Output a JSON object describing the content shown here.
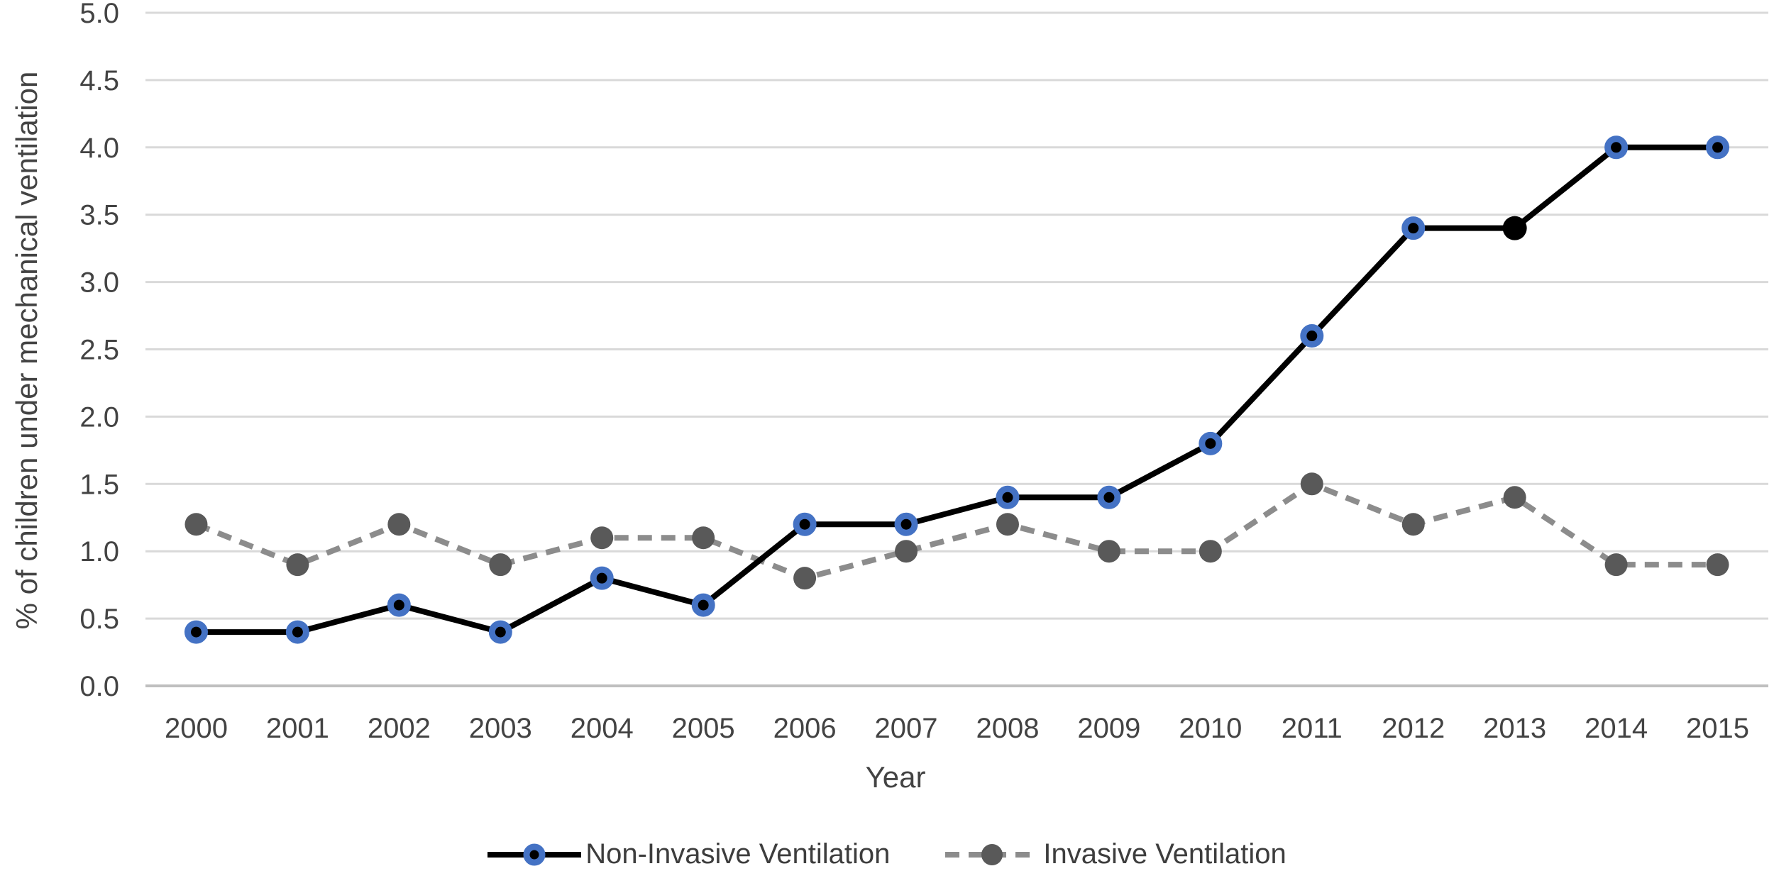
{
  "figure": {
    "background": "#ffffff"
  },
  "chart_data": {
    "type": "line",
    "title": "",
    "xlabel": "Year",
    "ylabel": "% of children under mechanical ventilation",
    "categories": [
      "2000",
      "2001",
      "2002",
      "2003",
      "2004",
      "2005",
      "2006",
      "2007",
      "2008",
      "2009",
      "2010",
      "2011",
      "2012",
      "2013",
      "2014",
      "2015"
    ],
    "y_ticks": [
      "0.0",
      "0.5",
      "1.0",
      "1.5",
      "2.0",
      "2.5",
      "3.0",
      "3.5",
      "4.0",
      "4.5",
      "5.0"
    ],
    "ylim": [
      0,
      5
    ],
    "grid": "horizontal",
    "legend_position": "bottom",
    "series": [
      {
        "name": "Non-Invasive Ventilation",
        "values": [
          0.4,
          0.4,
          0.6,
          0.4,
          0.8,
          0.6,
          1.2,
          1.2,
          1.4,
          1.4,
          1.8,
          2.6,
          3.4,
          3.4,
          4.0,
          4.0
        ],
        "line_style": "solid",
        "line_color": "#000000",
        "marker": "ring",
        "marker_ring_color": "#4472C4",
        "marker_core_color": "#000000",
        "marker_overrides": [
          {
            "index": 13,
            "marker": "solid",
            "color": "#000000"
          }
        ]
      },
      {
        "name": "Invasive Ventilation",
        "values": [
          1.2,
          0.9,
          1.2,
          0.9,
          1.1,
          1.1,
          0.8,
          1.0,
          1.2,
          1.0,
          1.0,
          1.5,
          1.2,
          1.4,
          0.9,
          0.9
        ],
        "line_style": "dashed",
        "line_color": "#8C8C8C",
        "marker": "solid",
        "marker_color": "#595959"
      }
    ],
    "colors": {
      "gridline": "#D9D9D9",
      "axis_line": "#BFBFBF",
      "tick_text": "#434343",
      "axis_title_text": "#434343",
      "legend_text": "#3d3d3d"
    }
  }
}
